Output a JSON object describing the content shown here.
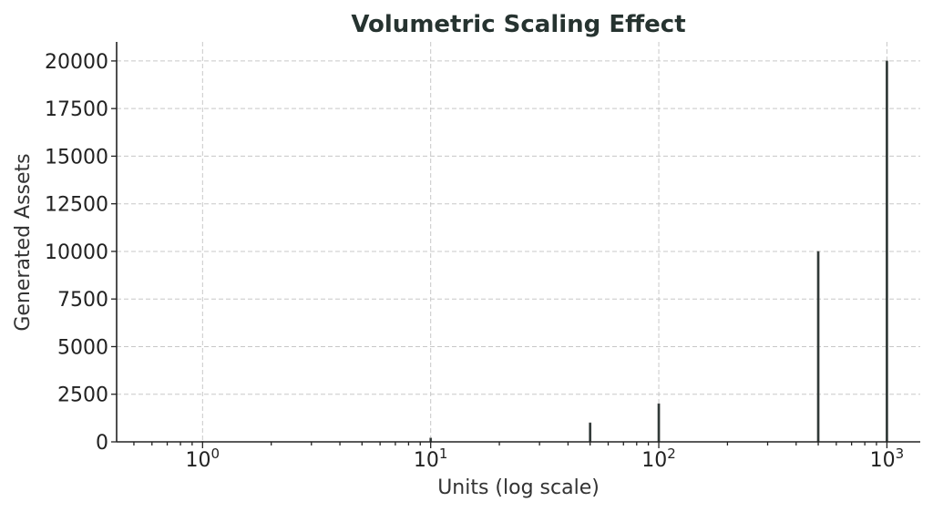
{
  "chart_data": {
    "type": "bar",
    "title": "Volumetric Scaling Effect",
    "xlabel": "Units (log scale)",
    "ylabel": "Generated Assets",
    "x_scale": "log",
    "xlim": [
      0.42,
      1400
    ],
    "ylim": [
      0,
      21000
    ],
    "grid": true,
    "x": [
      1,
      10,
      50,
      100,
      500,
      1000
    ],
    "values": [
      20,
      200,
      1000,
      2000,
      10000,
      20000
    ],
    "x_major_ticks": [
      1,
      10,
      100,
      1000
    ],
    "x_tick_labels": [
      {
        "base": "10",
        "exp": "0"
      },
      {
        "base": "10",
        "exp": "1"
      },
      {
        "base": "10",
        "exp": "2"
      },
      {
        "base": "10",
        "exp": "3"
      }
    ],
    "y_ticks": [
      0,
      2500,
      5000,
      7500,
      10000,
      12500,
      15000,
      17500,
      20000
    ],
    "y_tick_labels": [
      "0",
      "2500",
      "5000",
      "7500",
      "10000",
      "12500",
      "15000",
      "17500",
      "20000"
    ],
    "colors": {
      "bar_fill": "#263330",
      "bar_edge": "#555555",
      "grid": "#c8c8c8",
      "axis": "#222222",
      "title": "#263330"
    }
  }
}
